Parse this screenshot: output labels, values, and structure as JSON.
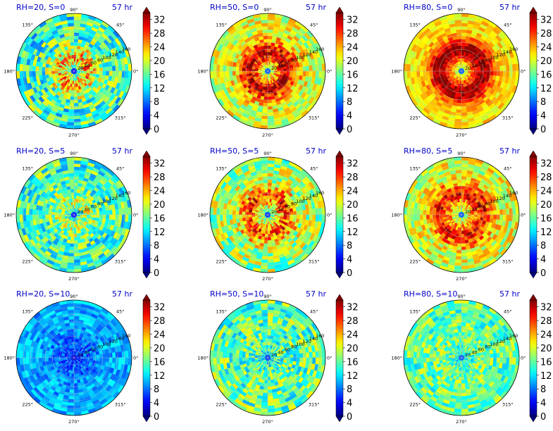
{
  "figure": {
    "colormap": "jet",
    "colorbar_ticks": [
      "0",
      "4",
      "8",
      "12",
      "16",
      "20",
      "24",
      "28",
      "32"
    ],
    "colorbar_range": [
      0,
      34
    ],
    "radial_ticks": [
      "20",
      "40",
      "60",
      "80",
      "100",
      "120",
      "140",
      "160"
    ],
    "angle_labels": [
      "0°",
      "45°",
      "90°",
      "135°",
      "180°",
      "225°",
      "270°",
      "315°"
    ],
    "title_color": "#0000cc"
  },
  "chart_data": [
    {
      "type": "heatmap",
      "projection": "polar",
      "title": "RH=20, S=0",
      "time_label": "57 hr",
      "field": {
        "center": 8,
        "ring": 24,
        "ring_radius": 0.2,
        "outer": 15,
        "noise": 7
      }
    },
    {
      "type": "heatmap",
      "projection": "polar",
      "title": "RH=50, S=0",
      "time_label": "57 hr",
      "field": {
        "center": 12,
        "ring": 32,
        "ring_radius": 0.3,
        "outer": 20,
        "noise": 5
      }
    },
    {
      "type": "heatmap",
      "projection": "polar",
      "title": "RH=80, S=0",
      "time_label": "57 hr",
      "field": {
        "center": 12,
        "ring": 34,
        "ring_radius": 0.35,
        "outer": 22,
        "noise": 3
      }
    },
    {
      "type": "heatmap",
      "projection": "polar",
      "title": "RH=20, S=5",
      "time_label": "57 hr",
      "field": {
        "center": 8,
        "ring": 19,
        "ring_radius": 0.2,
        "outer": 15,
        "noise": 6
      }
    },
    {
      "type": "heatmap",
      "projection": "polar",
      "title": "RH=50, S=5",
      "time_label": "57 hr",
      "field": {
        "center": 10,
        "ring": 28,
        "ring_radius": 0.3,
        "outer": 18,
        "noise": 6
      }
    },
    {
      "type": "heatmap",
      "projection": "polar",
      "title": "RH=80, S=5",
      "time_label": "57 hr",
      "field": {
        "center": 12,
        "ring": 30,
        "ring_radius": 0.35,
        "outer": 20,
        "noise": 5
      }
    },
    {
      "type": "heatmap",
      "projection": "polar",
      "title": "RH=20, S=10",
      "time_label": "57 hr",
      "field": {
        "center": 5,
        "ring": 7,
        "ring_radius": 0.2,
        "outer": 10,
        "noise": 3
      }
    },
    {
      "type": "heatmap",
      "projection": "polar",
      "title": "RH=50, S=10",
      "time_label": "57 hr",
      "field": {
        "center": 10,
        "ring": 16,
        "ring_radius": 0.3,
        "outer": 16,
        "noise": 6
      }
    },
    {
      "type": "heatmap",
      "projection": "polar",
      "title": "RH=80, S=10",
      "time_label": "57 hr",
      "field": {
        "center": 12,
        "ring": 17,
        "ring_radius": 0.3,
        "outer": 16,
        "noise": 5
      }
    }
  ]
}
